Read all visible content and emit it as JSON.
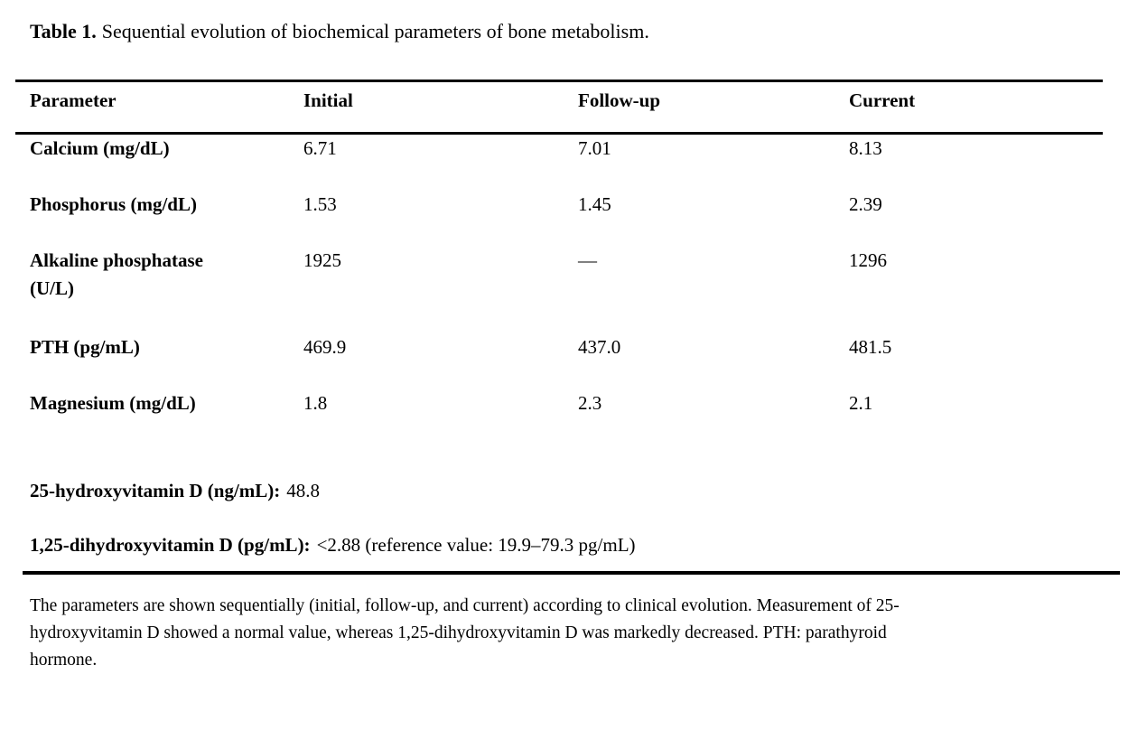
{
  "caption": {
    "label": "Table 1.",
    "text": "Sequential evolution of biochemical parameters of bone metabolism."
  },
  "table": {
    "columns": [
      "Parameter",
      "Initial",
      "Follow-up",
      "Current"
    ],
    "rows": [
      {
        "parameter": "Calcium (mg/dL)",
        "initial": "6.71",
        "follow_up": "7.01",
        "current": "8.13"
      },
      {
        "parameter": "Phosphorus (mg/dL)",
        "initial": "1.53",
        "follow_up": "1.45",
        "current": "2.39"
      },
      {
        "parameter": "Alkaline phosphatase (U/L)",
        "initial": "1925",
        "follow_up": "—",
        "current": "1296"
      },
      {
        "parameter": "PTH (pg/mL)",
        "initial": "469.9",
        "follow_up": "437.0",
        "current": "481.5"
      },
      {
        "parameter": "Magnesium (mg/dL)",
        "initial": "1.8",
        "follow_up": "2.3",
        "current": "2.1"
      }
    ],
    "supplementary_rows": [
      {
        "label": "25-hydroxyvitamin D (ng/mL):",
        "value": "48.8"
      },
      {
        "label": "1,25-dihydroxyvitamin D (pg/mL):",
        "value": "<2.88 (reference value: 19.9–79.3 pg/mL)"
      }
    ]
  },
  "footnote": {
    "lines": [
      "The parameters are shown sequentially (initial, follow-up, and current) according to clinical evolution. Measurement of 25-",
      "hydroxyvitamin D showed a normal value, whereas 1,25-dihydroxyvitamin D was markedly decreased. PTH: parathyroid",
      "hormone."
    ]
  },
  "colors": {
    "background": "#ffffff",
    "text": "#000000",
    "rule": "#000000"
  }
}
